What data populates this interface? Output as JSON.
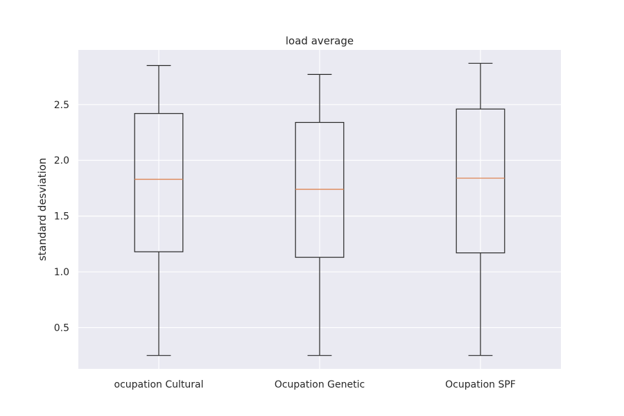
{
  "chart_data": {
    "type": "box",
    "title": "load average",
    "xlabel": "",
    "ylabel": "standard desviation",
    "categories": [
      "ocupation Cultural",
      "Ocupation Genetic",
      "Ocupation SPF"
    ],
    "boxes": [
      {
        "name": "ocupation Cultural",
        "whisker_low": 0.25,
        "q1": 1.18,
        "median": 1.83,
        "q3": 2.42,
        "whisker_high": 2.85
      },
      {
        "name": "Ocupation Genetic",
        "whisker_low": 0.25,
        "q1": 1.13,
        "median": 1.74,
        "q3": 2.34,
        "whisker_high": 2.77
      },
      {
        "name": "Ocupation SPF",
        "whisker_low": 0.25,
        "q1": 1.17,
        "median": 1.84,
        "q3": 2.46,
        "whisker_high": 2.87
      }
    ],
    "ylim": [
      0.13,
      2.99
    ],
    "yticks": [
      0.5,
      1.0,
      1.5,
      2.0,
      2.5
    ],
    "ytick_labels": [
      "0.5",
      "1.0",
      "1.5",
      "2.0",
      "2.5"
    ],
    "grid": true,
    "legend": "none",
    "colors": {
      "plot_background": "#eaeaf2",
      "grid": "#ffffff",
      "box": "#262626",
      "median": "#dd8452"
    }
  }
}
